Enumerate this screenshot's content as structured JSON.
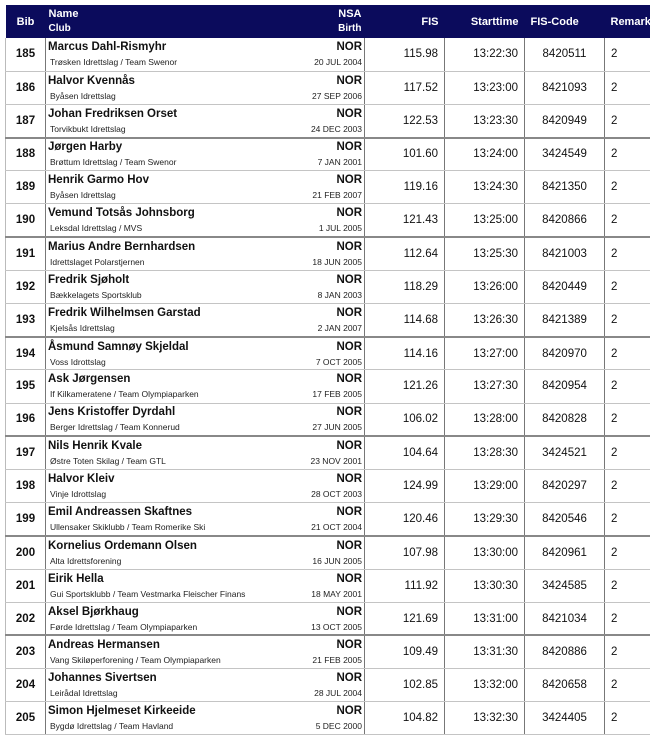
{
  "header": {
    "bib": "Bib",
    "name": "Name",
    "club": "Club",
    "nsa": "NSA",
    "birth": "Birth",
    "fis": "FIS",
    "starttime": "Starttime",
    "fis_code": "FIS-Code",
    "remarks": "Remarks"
  },
  "colors": {
    "header_bg": "#0b0b5c",
    "header_text": "#ffffff"
  },
  "rows": [
    {
      "bib": "185",
      "name": "Marcus Dahl-Rismyhr",
      "club": "Trøsken Idrettslag  / Team Swenor",
      "nsa": "NOR",
      "birth": "20 JUL 2004",
      "fis": "115.98",
      "start": "13:22:30",
      "code": "8420511",
      "remarks": "2"
    },
    {
      "bib": "186",
      "name": "Halvor Kvennås",
      "club": "Byåsen Idrettslag",
      "nsa": "NOR",
      "birth": "27 SEP 2006",
      "fis": "117.52",
      "start": "13:23:00",
      "code": "8421093",
      "remarks": "2"
    },
    {
      "bib": "187",
      "name": "Johan Fredriksen Orset",
      "club": "Torvikbukt Idrettslag",
      "nsa": "NOR",
      "birth": "24 DEC 2003",
      "fis": "122.53",
      "start": "13:23:30",
      "code": "8420949",
      "remarks": "2"
    },
    {
      "bib": "188",
      "name": "Jørgen Harby",
      "club": "Brøttum Idrettslag  / Team Swenor",
      "nsa": "NOR",
      "birth": "7 JAN 2001",
      "fis": "101.60",
      "start": "13:24:00",
      "code": "3424549",
      "remarks": "2"
    },
    {
      "bib": "189",
      "name": "Henrik Garmo Hov",
      "club": "Byåsen Idrettslag",
      "nsa": "NOR",
      "birth": "21 FEB 2007",
      "fis": "119.16",
      "start": "13:24:30",
      "code": "8421350",
      "remarks": "2"
    },
    {
      "bib": "190",
      "name": "Vemund Totsås Johnsborg",
      "club": "Leksdal Idrettslag  / MVS",
      "nsa": "NOR",
      "birth": "1 JUL 2005",
      "fis": "121.43",
      "start": "13:25:00",
      "code": "8420866",
      "remarks": "2"
    },
    {
      "bib": "191",
      "name": "Marius Andre Bernhardsen",
      "club": "Idrettslaget Polarstjernen",
      "nsa": "NOR",
      "birth": "18 JUN 2005",
      "fis": "112.64",
      "start": "13:25:30",
      "code": "8421003",
      "remarks": "2"
    },
    {
      "bib": "192",
      "name": "Fredrik Sjøholt",
      "club": "Bækkelagets Sportsklub",
      "nsa": "NOR",
      "birth": "8 JAN 2003",
      "fis": "118.29",
      "start": "13:26:00",
      "code": "8420449",
      "remarks": "2"
    },
    {
      "bib": "193",
      "name": "Fredrik Wilhelmsen Garstad",
      "club": "Kjelsås Idrettslag",
      "nsa": "NOR",
      "birth": "2 JAN 2007",
      "fis": "114.68",
      "start": "13:26:30",
      "code": "8421389",
      "remarks": "2"
    },
    {
      "bib": "194",
      "name": "Åsmund Samnøy Skjeldal",
      "club": "Voss Idrottslag",
      "nsa": "NOR",
      "birth": "7 OCT 2005",
      "fis": "114.16",
      "start": "13:27:00",
      "code": "8420970",
      "remarks": "2"
    },
    {
      "bib": "195",
      "name": "Ask Jørgensen",
      "club": "If Kilkameratene  / Team Olympiaparken",
      "nsa": "NOR",
      "birth": "17 FEB 2005",
      "fis": "121.26",
      "start": "13:27:30",
      "code": "8420954",
      "remarks": "2"
    },
    {
      "bib": "196",
      "name": "Jens Kristoffer Dyrdahl",
      "club": "Berger Idrettslag  / Team Konnerud",
      "nsa": "NOR",
      "birth": "27 JUN 2005",
      "fis": "106.02",
      "start": "13:28:00",
      "code": "8420828",
      "remarks": "2"
    },
    {
      "bib": "197",
      "name": "Nils Henrik Kvale",
      "club": "Østre Toten Skilag  / Team GTL",
      "nsa": "NOR",
      "birth": "23 NOV 2001",
      "fis": "104.64",
      "start": "13:28:30",
      "code": "3424521",
      "remarks": "2"
    },
    {
      "bib": "198",
      "name": "Halvor Kleiv",
      "club": "Vinje Idrottslag",
      "nsa": "NOR",
      "birth": "28 OCT 2003",
      "fis": "124.99",
      "start": "13:29:00",
      "code": "8420297",
      "remarks": "2"
    },
    {
      "bib": "199",
      "name": "Emil Andreassen Skaftnes",
      "club": "Ullensaker Skiklubb  / Team Romerike Ski",
      "nsa": "NOR",
      "birth": "21 OCT 2004",
      "fis": "120.46",
      "start": "13:29:30",
      "code": "8420546",
      "remarks": "2"
    },
    {
      "bib": "200",
      "name": "Kornelius Ordemann Olsen",
      "club": "Alta Idrettsforening",
      "nsa": "NOR",
      "birth": "16 JUN 2005",
      "fis": "107.98",
      "start": "13:30:00",
      "code": "8420961",
      "remarks": "2"
    },
    {
      "bib": "201",
      "name": "Eirik Hella",
      "club": "Gui Sportsklubb  / Team Vestmarka Fleischer Finans",
      "nsa": "NOR",
      "birth": "18 MAY 2001",
      "fis": "111.92",
      "start": "13:30:30",
      "code": "3424585",
      "remarks": "2"
    },
    {
      "bib": "202",
      "name": "Aksel Bjørkhaug",
      "club": "Førde Idrettslag  / Team Olympiaparken",
      "nsa": "NOR",
      "birth": "13 OCT 2005",
      "fis": "121.69",
      "start": "13:31:00",
      "code": "8421034",
      "remarks": "2"
    },
    {
      "bib": "203",
      "name": "Andreas Hermansen",
      "club": "Vang Skiløperforening  / Team Olympiaparken",
      "nsa": "NOR",
      "birth": "21 FEB 2005",
      "fis": "109.49",
      "start": "13:31:30",
      "code": "8420886",
      "remarks": "2"
    },
    {
      "bib": "204",
      "name": "Johannes Sivertsen",
      "club": "Leirådal Idrettslag",
      "nsa": "NOR",
      "birth": "28 JUL 2004",
      "fis": "102.85",
      "start": "13:32:00",
      "code": "8420658",
      "remarks": "2"
    },
    {
      "bib": "205",
      "name": "Simon Hjelmeset Kirkeeide",
      "club": "Bygdø Idrettslag  / Team Havland",
      "nsa": "NOR",
      "birth": "5 DEC 2000",
      "fis": "104.82",
      "start": "13:32:30",
      "code": "3424405",
      "remarks": "2"
    }
  ]
}
